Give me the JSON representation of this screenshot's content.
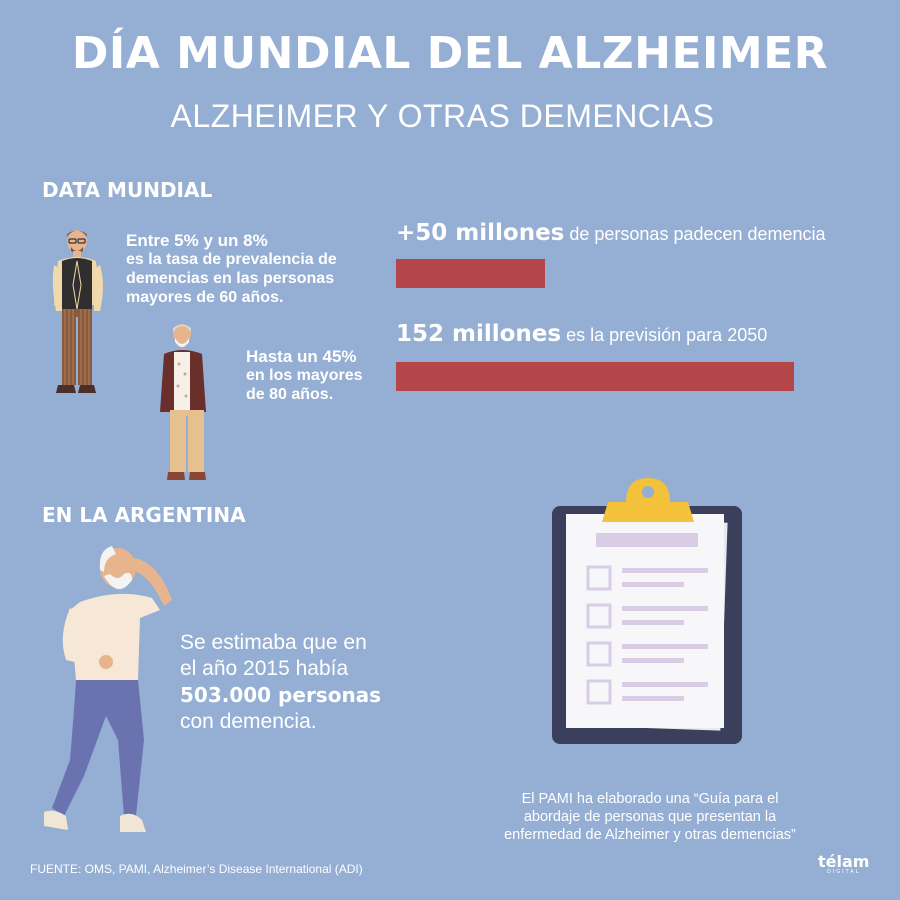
{
  "header": {
    "title": "DÍA MUNDIAL DEL ALZHEIMER",
    "subtitle": "ALZHEIMER Y OTRAS DEMENCIAS"
  },
  "world": {
    "heading": "DATA MUNDIAL",
    "stat1_line1": "Entre 5% y un 8%",
    "stat1_line2": "es la tasa de prevalencia de",
    "stat1_line3": "demencias en las personas",
    "stat1_line4": "mayores de 60 años.",
    "stat2_line1": "Hasta un 45%",
    "stat2_line2": "en los mayores",
    "stat2_line3": "de 80 años.",
    "bars": [
      {
        "value_label": "+50 millones",
        "text": " de personas padecen demencia",
        "value": 50
      },
      {
        "value_label": "152 millones",
        "text": " es la previsión para 2050",
        "value": 152
      }
    ],
    "bar_color": "#b4464a"
  },
  "argentina": {
    "heading": "EN LA ARGENTINA",
    "line1": "Se estimaba que en",
    "line2": "el año 2015 había",
    "line3": "503.000 personas",
    "line4": "con demencia."
  },
  "pami": {
    "line1": "El PAMI ha elaborado una “Guía para el",
    "line2": "abordaje de personas que presentan la",
    "line3": "enfermedad de Alzheimer y otras demencias”"
  },
  "footer": {
    "source": "FUENTE: OMS, PAMI, Alzheimer’s Disease International (ADI)",
    "logo": "télam",
    "logo_sub": "DIGITAL"
  },
  "colors": {
    "background": "#94aed4",
    "bar": "#b4464a",
    "clipboard": "#3a3f5c",
    "clip": "#f3c13a"
  }
}
